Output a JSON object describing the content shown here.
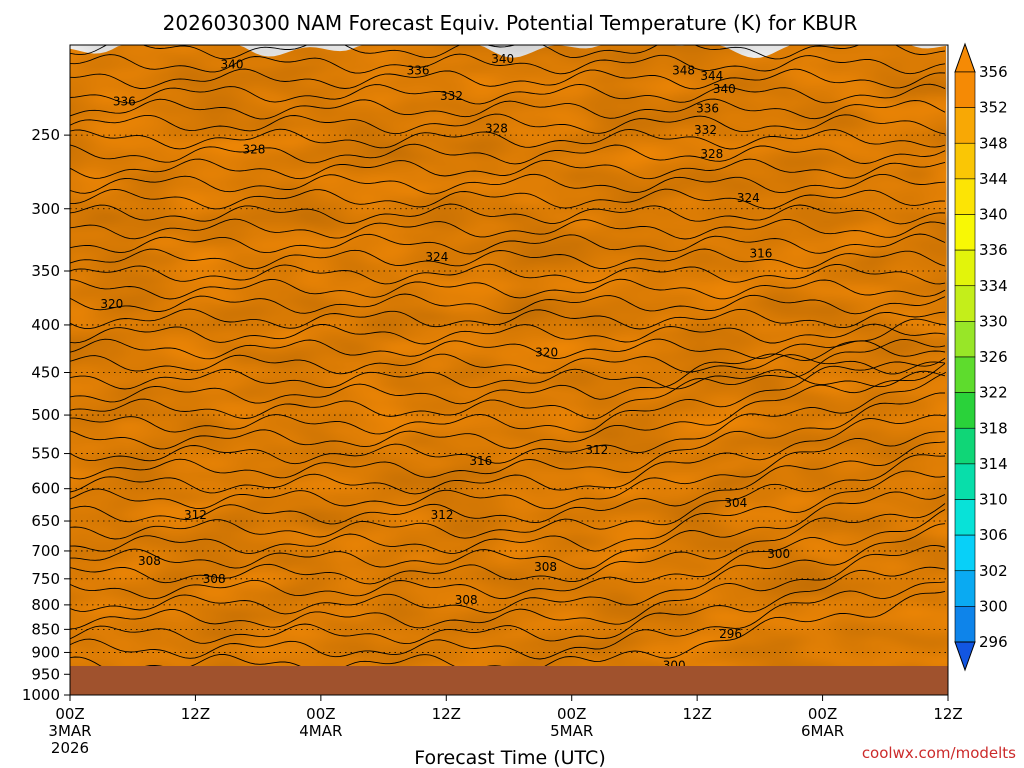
{
  "chart_data": {
    "type": "heatmap",
    "title": "2026030300 NAM Forecast Equiv. Potential Temperature (K) for KBUR",
    "xlabel": "Forecast Time (UTC)",
    "ylabel": "",
    "credit": "coolwx.com/modelts",
    "x_ticks": [
      {
        "hour": 0,
        "line1": "00Z",
        "line2": "3MAR",
        "line3": "2026"
      },
      {
        "hour": 12,
        "line1": "12Z",
        "line2": "",
        "line3": ""
      },
      {
        "hour": 24,
        "line1": "00Z",
        "line2": "4MAR",
        "line3": ""
      },
      {
        "hour": 36,
        "line1": "12Z",
        "line2": "",
        "line3": ""
      },
      {
        "hour": 48,
        "line1": "00Z",
        "line2": "5MAR",
        "line3": ""
      },
      {
        "hour": 60,
        "line1": "12Z",
        "line2": "",
        "line3": ""
      },
      {
        "hour": 72,
        "line1": "00Z",
        "line2": "6MAR",
        "line3": ""
      },
      {
        "hour": 84,
        "line1": "12Z",
        "line2": "",
        "line3": ""
      }
    ],
    "xlim": [
      0,
      84
    ],
    "y_ticks": [
      250,
      300,
      350,
      400,
      450,
      500,
      550,
      600,
      650,
      700,
      750,
      800,
      850,
      900,
      950,
      1000
    ],
    "ylim_hpa": [
      200,
      1000
    ],
    "y_scale": "log-pressure (inverted)",
    "grid": "dotted horizontal lines at each pressure level",
    "surface_pressure_hpa": 972,
    "colorbar": {
      "labels": [
        356,
        352,
        348,
        344,
        340,
        336,
        334,
        330,
        326,
        322,
        318,
        314,
        310,
        306,
        302,
        300,
        296
      ],
      "colors": [
        "#f58a05",
        "#f8a805",
        "#fac605",
        "#fce405",
        "#f8f805",
        "#e2f40b",
        "#c4ee1a",
        "#98e628",
        "#5edc2d",
        "#2ad23a",
        "#10d677",
        "#08deaa",
        "#08e2d8",
        "#08d0f8",
        "#0aaaf2",
        "#0e84ea",
        "#1256e2"
      ],
      "extend": "both"
    },
    "contour_labels": [
      {
        "text": "340",
        "hour": 15.5,
        "p": 210
      },
      {
        "text": "336",
        "hour": 33.3,
        "p": 213
      },
      {
        "text": "340",
        "hour": 41.4,
        "p": 207
      },
      {
        "text": "348",
        "hour": 58.7,
        "p": 213
      },
      {
        "text": "344",
        "hour": 61.4,
        "p": 216
      },
      {
        "text": "340",
        "hour": 62.6,
        "p": 223
      },
      {
        "text": "336",
        "hour": 5.2,
        "p": 230
      },
      {
        "text": "332",
        "hour": 36.5,
        "p": 227
      },
      {
        "text": "336",
        "hour": 61.0,
        "p": 234
      },
      {
        "text": "328",
        "hour": 40.8,
        "p": 246
      },
      {
        "text": "332",
        "hour": 60.8,
        "p": 247
      },
      {
        "text": "328",
        "hour": 17.6,
        "p": 259
      },
      {
        "text": "328",
        "hour": 61.4,
        "p": 262
      },
      {
        "text": "324",
        "hour": 64.9,
        "p": 292
      },
      {
        "text": "324",
        "hour": 35.1,
        "p": 338
      },
      {
        "text": "316",
        "hour": 66.1,
        "p": 335
      },
      {
        "text": "320",
        "hour": 4.0,
        "p": 380
      },
      {
        "text": "320",
        "hour": 45.6,
        "p": 428
      },
      {
        "text": "312",
        "hour": 50.4,
        "p": 545
      },
      {
        "text": "316",
        "hour": 39.3,
        "p": 560
      },
      {
        "text": "304",
        "hour": 63.7,
        "p": 622
      },
      {
        "text": "312",
        "hour": 12.0,
        "p": 640
      },
      {
        "text": "312",
        "hour": 35.6,
        "p": 640
      },
      {
        "text": "300",
        "hour": 67.8,
        "p": 705
      },
      {
        "text": "308",
        "hour": 7.6,
        "p": 718
      },
      {
        "text": "308",
        "hour": 45.5,
        "p": 728
      },
      {
        "text": "308",
        "hour": 13.8,
        "p": 750
      },
      {
        "text": "308",
        "hour": 37.9,
        "p": 790
      },
      {
        "text": "296",
        "hour": 63.2,
        "p": 860
      },
      {
        "text": "300",
        "hour": 57.8,
        "p": 930
      }
    ]
  }
}
